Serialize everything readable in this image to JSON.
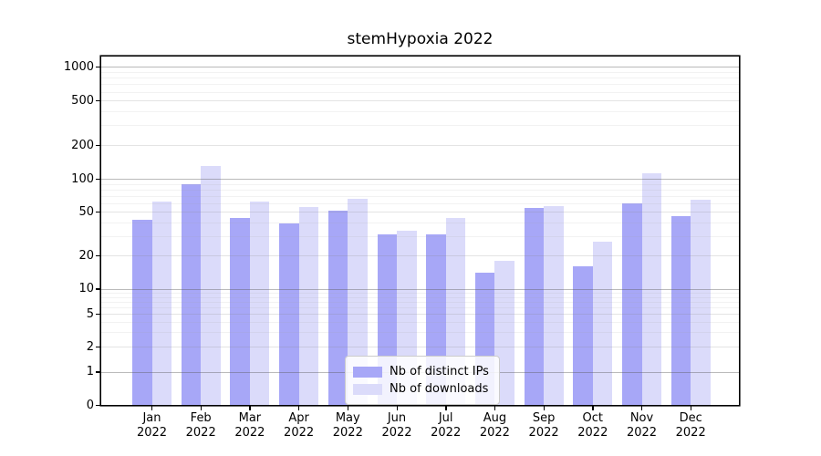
{
  "title": "stemHypoxia 2022",
  "legend": {
    "items": [
      {
        "label": "Nb of distinct IPs",
        "color": "#a7a7f7"
      },
      {
        "label": "Nb of downloads",
        "color": "#dbdbfa"
      }
    ]
  },
  "chart_data": {
    "type": "bar",
    "title": "stemHypoxia 2022",
    "categories": [
      "Jan 2022",
      "Feb 2022",
      "Mar 2022",
      "Apr 2022",
      "May 2022",
      "Jun 2022",
      "Jul 2022",
      "Aug 2022",
      "Sep 2022",
      "Oct 2022",
      "Nov 2022",
      "Dec 2022"
    ],
    "series": [
      {
        "name": "Nb of distinct IPs",
        "color": "#a7a7f7",
        "values": [
          42,
          90,
          44,
          39,
          51,
          31,
          31,
          14,
          54,
          16,
          60,
          46
        ]
      },
      {
        "name": "Nb of downloads",
        "color": "#dbdbfa",
        "values": [
          62,
          131,
          62,
          55,
          66,
          34,
          44,
          18,
          56,
          27,
          112,
          65
        ]
      }
    ],
    "xlabel": "",
    "ylabel": "",
    "yscale": "symlog",
    "ylim": [
      0,
      1300
    ],
    "y_ticks": [
      0,
      1,
      2,
      5,
      10,
      20,
      50,
      100,
      200,
      500,
      1000
    ],
    "grid": "both",
    "grid_major_values": [
      1,
      10,
      100,
      1000
    ],
    "grid_mid_values": [
      2,
      5,
      20,
      50,
      200,
      500
    ],
    "grid_minor_values": [
      3,
      4,
      6,
      7,
      8,
      9,
      30,
      40,
      60,
      70,
      80,
      90,
      300,
      400,
      600,
      700,
      800,
      900
    ],
    "legend_position": "lower center"
  }
}
